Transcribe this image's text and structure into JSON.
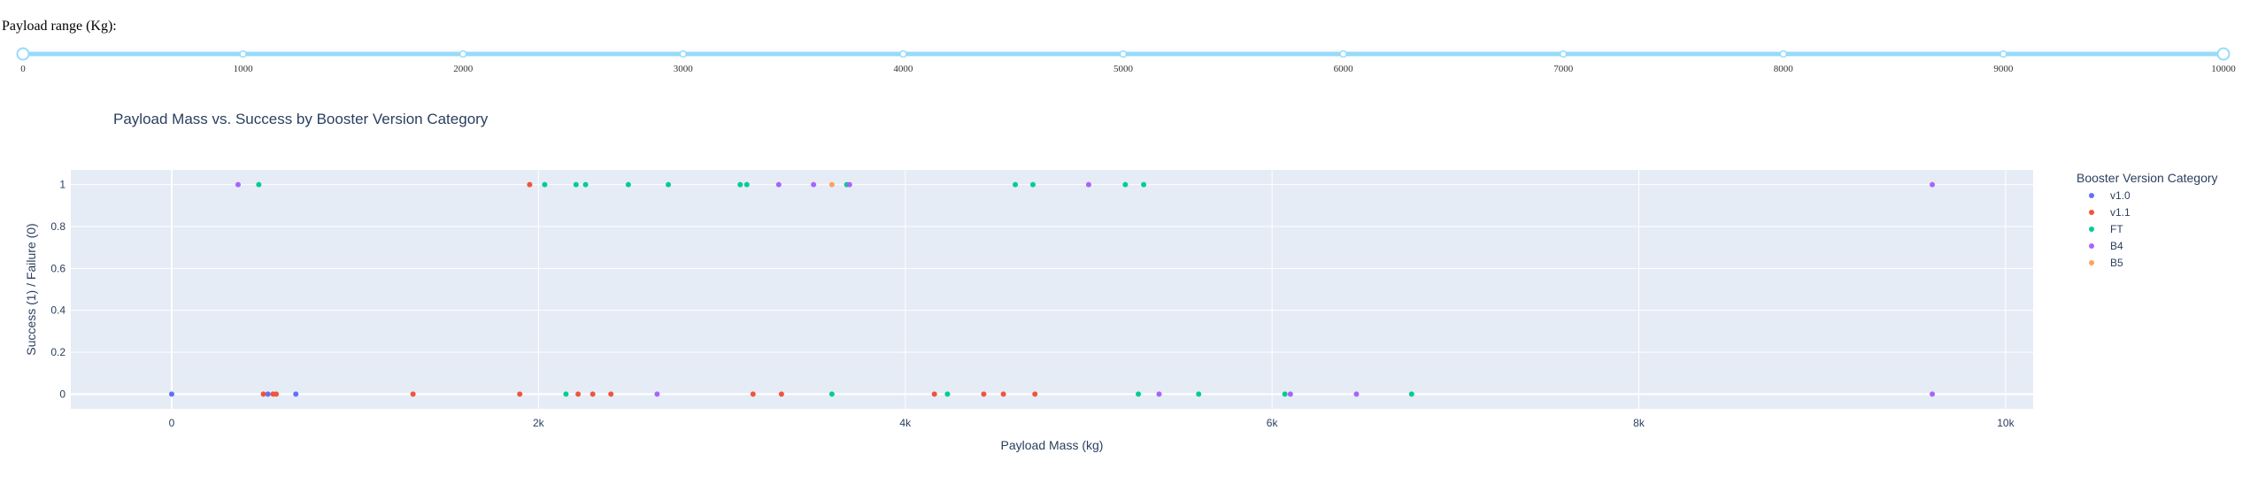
{
  "range_slider": {
    "label": "Payload range (Kg):",
    "min": 0,
    "max": 10000,
    "value": [
      0,
      10000
    ],
    "marks": [
      "0",
      "1000",
      "2000",
      "3000",
      "4000",
      "5000",
      "6000",
      "7000",
      "8000",
      "9000",
      "10000"
    ],
    "color": "#96dbfa"
  },
  "chart_data": {
    "type": "scatter",
    "title": "Payload Mass vs. Success by Booster Version Category",
    "xlabel": "Payload Mass (kg)",
    "ylabel": "Success (1) / Failure (0)",
    "xlim": [
      -550,
      10150
    ],
    "ylim": [
      -0.07,
      1.07
    ],
    "xticks": [
      0,
      2000,
      4000,
      6000,
      8000,
      10000
    ],
    "xtick_labels": [
      "0",
      "2k",
      "4k",
      "6k",
      "8k",
      "10k"
    ],
    "yticks": [
      0,
      0.2,
      0.4,
      0.6,
      0.8,
      1
    ],
    "ytick_labels": [
      "0",
      "0.2",
      "0.4",
      "0.6",
      "0.8",
      "1"
    ],
    "grid": true,
    "legend_title": "Booster Version Category",
    "legend_position": "right",
    "series": [
      {
        "name": "v1.0",
        "color": "#636efa",
        "points": [
          [
            0,
            0
          ],
          [
            525,
            0
          ],
          [
            677,
            0
          ]
        ]
      },
      {
        "name": "v1.1",
        "color": "#ef553b",
        "points": [
          [
            500,
            0
          ],
          [
            553,
            0
          ],
          [
            570,
            0
          ],
          [
            1316,
            0
          ],
          [
            1898,
            0
          ],
          [
            1952,
            1
          ],
          [
            2216,
            0
          ],
          [
            2296,
            0
          ],
          [
            2395,
            0
          ],
          [
            3170,
            0
          ],
          [
            3325,
            0
          ],
          [
            4159,
            0
          ],
          [
            4428,
            0
          ],
          [
            4535,
            0
          ],
          [
            4707,
            0
          ]
        ]
      },
      {
        "name": "FT",
        "color": "#00cc96",
        "points": [
          [
            475,
            1
          ],
          [
            2034,
            1
          ],
          [
            2150,
            0
          ],
          [
            2205,
            1
          ],
          [
            2257,
            1
          ],
          [
            2490,
            1
          ],
          [
            2708,
            1
          ],
          [
            3100,
            1
          ],
          [
            3136,
            1
          ],
          [
            3600,
            0
          ],
          [
            3681,
            1
          ],
          [
            4230,
            0
          ],
          [
            4600,
            1
          ],
          [
            4696,
            1
          ],
          [
            5200,
            1
          ],
          [
            5271,
            0
          ],
          [
            5300,
            1
          ],
          [
            5600,
            0
          ],
          [
            6070,
            0
          ],
          [
            6761,
            0
          ]
        ]
      },
      {
        "name": "B4",
        "color": "#ab63fa",
        "points": [
          [
            362,
            1
          ],
          [
            2647,
            0
          ],
          [
            3310,
            1
          ],
          [
            3500,
            1
          ],
          [
            3696,
            1
          ],
          [
            5000,
            1
          ],
          [
            5384,
            0
          ],
          [
            6100,
            0
          ],
          [
            6460,
            0
          ],
          [
            9600,
            0
          ],
          [
            9600,
            1
          ]
        ]
      },
      {
        "name": "B5",
        "color": "#ffa15a",
        "points": [
          [
            3600,
            1
          ]
        ]
      }
    ]
  }
}
